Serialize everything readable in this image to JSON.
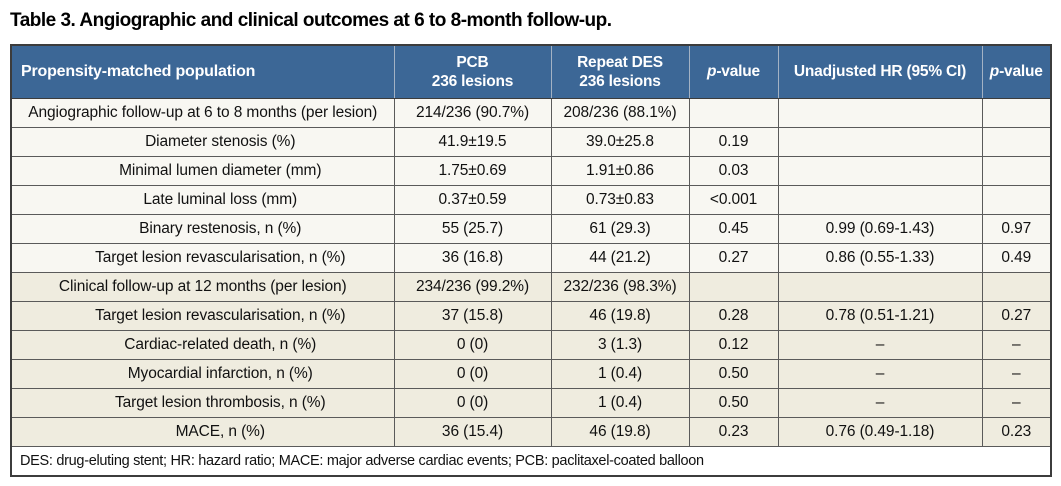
{
  "title": "Table 3. Angiographic and clinical outcomes at 6 to 8-month follow-up.",
  "colors": {
    "header_bg": "#3C6796",
    "row_light": "#F8F7F2",
    "row_beige": "#EFECDF",
    "border_dark": "#3C3C3C",
    "border_cell": "#5A5A5A",
    "header_divider": "#A3B2C4",
    "header_text": "#FFFFFF",
    "body_text": "#111111"
  },
  "header": {
    "population": "Propensity-matched population",
    "pcb_line1": "PCB",
    "pcb_line2": "236 lesions",
    "des_line1": "Repeat DES",
    "des_line2": "236 lesions",
    "pvalue1_italic": "p",
    "pvalue1_rest": "-value",
    "hr": "Unadjusted HR (95% CI)",
    "pvalue2_italic": "p",
    "pvalue2_rest": "-value"
  },
  "rows": [
    {
      "label": "Angiographic follow-up at 6 to 8 months (per lesion)",
      "indent": false,
      "group": "angiographic",
      "pcb": "214/236 (90.7%)",
      "des": "208/236 (88.1%)",
      "p1": "",
      "hr": "",
      "p2": ""
    },
    {
      "label": "Diameter stenosis (%)",
      "indent": true,
      "group": "angiographic",
      "pcb": "41.9±19.5",
      "des": "39.0±25.8",
      "p1": "0.19",
      "hr": "",
      "p2": ""
    },
    {
      "label": "Minimal lumen diameter (mm)",
      "indent": true,
      "group": "angiographic",
      "pcb": "1.75±0.69",
      "des": "1.91±0.86",
      "p1": "0.03",
      "hr": "",
      "p2": ""
    },
    {
      "label": "Late luminal loss (mm)",
      "indent": true,
      "group": "angiographic",
      "pcb": "0.37±0.59",
      "des": "0.73±0.83",
      "p1": "<0.001",
      "hr": "",
      "p2": ""
    },
    {
      "label": "Binary restenosis, n (%)",
      "indent": true,
      "group": "angiographic",
      "pcb": "55 (25.7)",
      "des": "61 (29.3)",
      "p1": "0.45",
      "hr": "0.99 (0.69-1.43)",
      "p2": "0.97"
    },
    {
      "label": "Target lesion revascularisation, n (%)",
      "indent": true,
      "group": "angiographic",
      "pcb": "36 (16.8)",
      "des": "44 (21.2)",
      "p1": "0.27",
      "hr": "0.86 (0.55-1.33)",
      "p2": "0.49"
    },
    {
      "label": "Clinical follow-up at 12 months (per lesion)",
      "indent": false,
      "group": "clinical",
      "pcb": "234/236 (99.2%)",
      "des": "232/236 (98.3%)",
      "p1": "",
      "hr": "",
      "p2": ""
    },
    {
      "label": "Target lesion revascularisation, n (%)",
      "indent": true,
      "group": "clinical",
      "pcb": "37 (15.8)",
      "des": "46 (19.8)",
      "p1": "0.28",
      "hr": "0.78 (0.51-1.21)",
      "p2": "0.27"
    },
    {
      "label": "Cardiac-related death, n (%)",
      "indent": true,
      "group": "clinical",
      "pcb": "0 (0)",
      "des": "3 (1.3)",
      "p1": "0.12",
      "hr": "–",
      "p2": "–"
    },
    {
      "label": "Myocardial infarction, n (%)",
      "indent": true,
      "group": "clinical",
      "pcb": "0 (0)",
      "des": "1 (0.4)",
      "p1": "0.50",
      "hr": "–",
      "p2": "–"
    },
    {
      "label": "Target lesion thrombosis, n (%)",
      "indent": true,
      "group": "clinical",
      "pcb": "0 (0)",
      "des": "1 (0.4)",
      "p1": "0.50",
      "hr": "–",
      "p2": "–"
    },
    {
      "label": "MACE, n (%)",
      "indent": true,
      "group": "clinical",
      "pcb": "36 (15.4)",
      "des": "46 (19.8)",
      "p1": "0.23",
      "hr": "0.76 (0.49-1.18)",
      "p2": "0.23"
    }
  ],
  "footnote": "DES: drug-eluting stent; HR: hazard ratio; MACE: major adverse cardiac events; PCB: paclitaxel-coated balloon"
}
